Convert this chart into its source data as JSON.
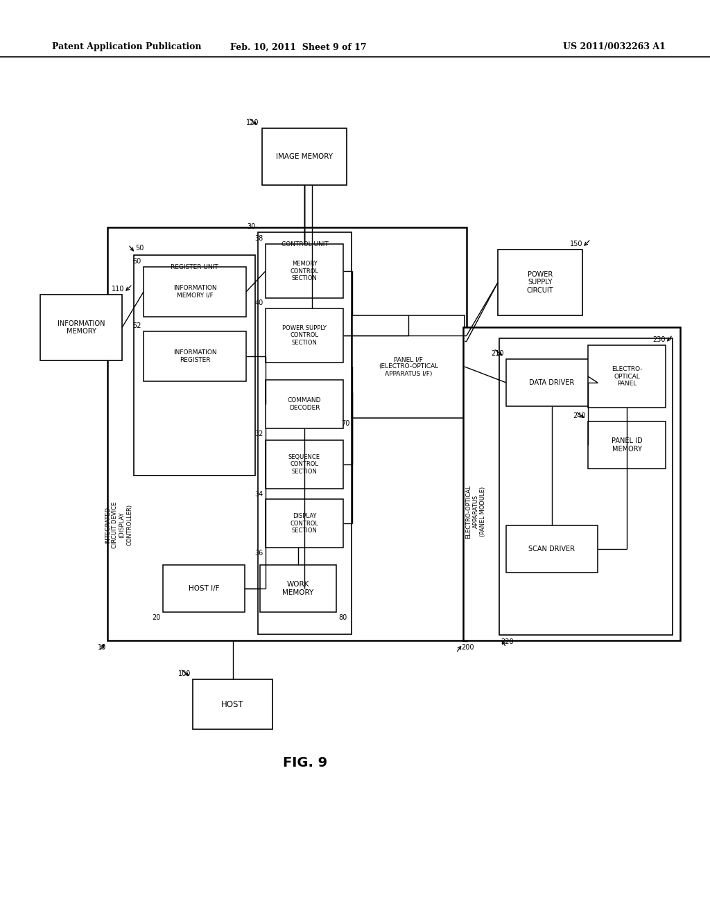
{
  "header_left": "Patent Application Publication",
  "header_mid": "Feb. 10, 2011  Sheet 9 of 17",
  "header_right": "US 2011/0032263 A1",
  "figure_label": "FIG. 9",
  "bg": "#ffffff",
  "lc": "#000000"
}
